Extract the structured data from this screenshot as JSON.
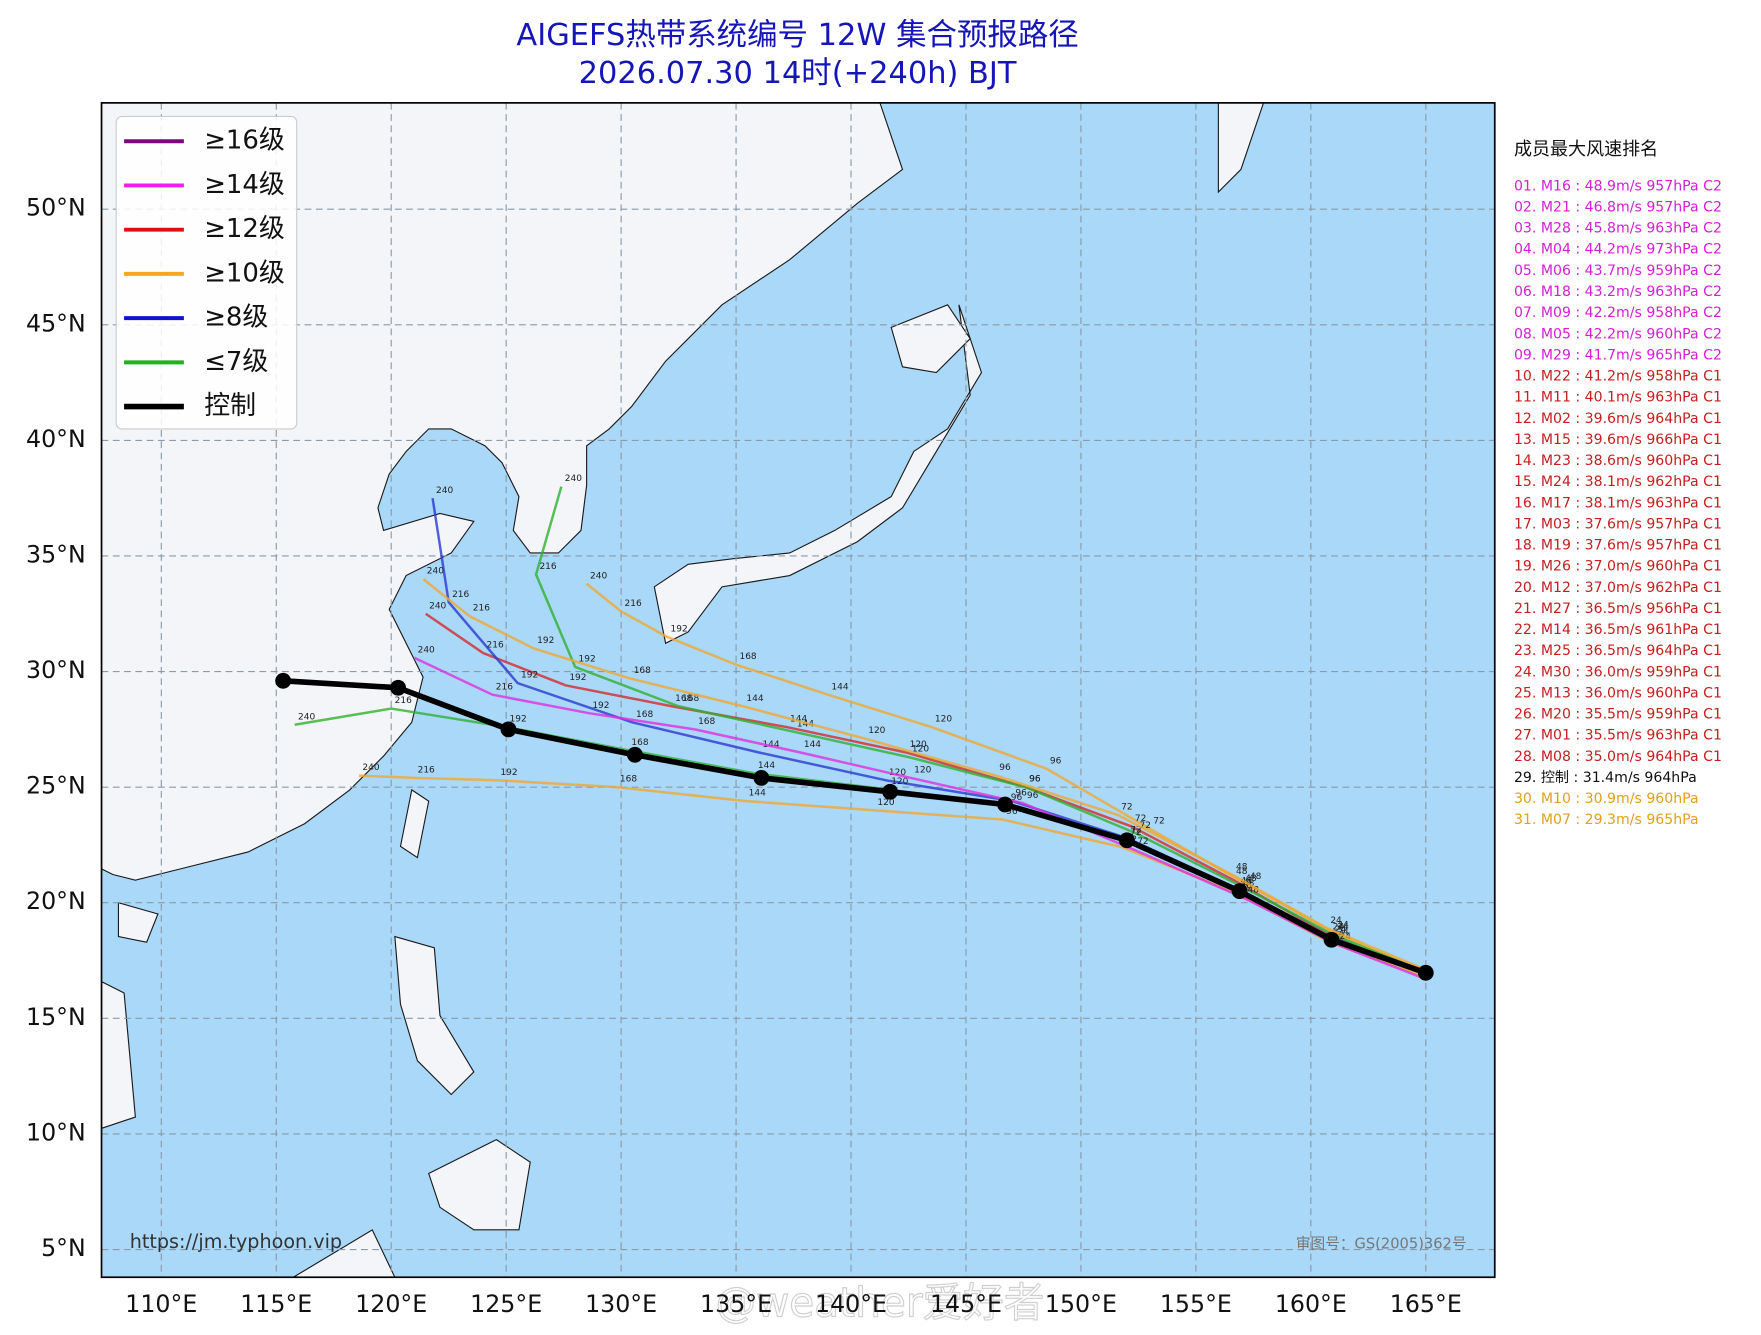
{
  "chart_data": {
    "type": "track-map",
    "title": [
      "AIGEFS热带系统编号 12W 集合预报路径",
      "2026.07.30 14时(+240h) BJT"
    ],
    "xlim": [
      107.4,
      168
    ],
    "ylim": [
      3.8,
      54.6
    ],
    "xticks": [
      {
        "value": 110,
        "label": "110°E"
      },
      {
        "value": 115,
        "label": "115°E"
      },
      {
        "value": 120,
        "label": "120°E"
      },
      {
        "value": 125,
        "label": "125°E"
      },
      {
        "value": 130,
        "label": "130°E"
      },
      {
        "value": 135,
        "label": "135°E"
      },
      {
        "value": 140,
        "label": "140°E"
      },
      {
        "value": 145,
        "label": "145°E"
      },
      {
        "value": 150,
        "label": "150°E"
      },
      {
        "value": 155,
        "label": "155°E"
      },
      {
        "value": 160,
        "label": "160°E"
      },
      {
        "value": 165,
        "label": "165°E"
      }
    ],
    "yticks": [
      {
        "value": 5,
        "label": "5°N"
      },
      {
        "value": 10,
        "label": "10°N"
      },
      {
        "value": 15,
        "label": "15°N"
      },
      {
        "value": 20,
        "label": "20°N"
      },
      {
        "value": 25,
        "label": "25°N"
      },
      {
        "value": 30,
        "label": "30°N"
      },
      {
        "value": 35,
        "label": "35°N"
      },
      {
        "value": 40,
        "label": "40°N"
      },
      {
        "value": 45,
        "label": "45°N"
      },
      {
        "value": 50,
        "label": "50°N"
      }
    ],
    "grid": true,
    "legend_position": "upper left",
    "legend": [
      {
        "label": "≥16级",
        "color": "#7a0a78"
      },
      {
        "label": "≥14级",
        "color": "#f01cf0"
      },
      {
        "label": "≥12级",
        "color": "#e01010"
      },
      {
        "label": "≥10级",
        "color": "#f5a623"
      },
      {
        "label": "≥8级",
        "color": "#1010d0"
      },
      {
        "label": "≤7级",
        "color": "#20b020"
      },
      {
        "label": "控制",
        "color": "#000000"
      }
    ],
    "hours": [
      24,
      48,
      72,
      96,
      120,
      144,
      168,
      192,
      216,
      240
    ],
    "series": [
      {
        "color": "#f0a830",
        "x": [
          165,
          161,
          157.2,
          153,
          148.5,
          143.5,
          139,
          135,
          132,
          130,
          128.5
        ],
        "values": [
          17,
          18.7,
          20.8,
          23.2,
          25.8,
          27.6,
          29,
          30.3,
          31.5,
          32.6,
          33.8
        ]
      },
      {
        "color": "#d42a2a",
        "x": [
          165,
          160.8,
          156.6,
          152.2,
          147.6,
          142.4,
          137.2,
          132.2,
          127.6,
          124,
          121.5
        ],
        "values": [
          16.9,
          18.6,
          21,
          23.3,
          25,
          26.5,
          27.6,
          28.5,
          29.4,
          30.8,
          32.5
        ]
      },
      {
        "color": "#2a3ad0",
        "x": [
          165,
          160.9,
          156.8,
          152,
          147,
          141.5,
          136,
          130.5,
          125.5,
          122.5,
          121.8
        ],
        "values": [
          17,
          18.5,
          20.6,
          22.8,
          24.4,
          25.3,
          26.5,
          27.8,
          29.5,
          33,
          37.5
        ]
      },
      {
        "color": "#30b030",
        "x": [
          165,
          161,
          157,
          152.4,
          147.6,
          142.5,
          137.5,
          132.5,
          128,
          126.3,
          127.4
        ],
        "values": [
          17,
          18.6,
          20.7,
          23,
          25,
          26.3,
          27.4,
          28.5,
          30.2,
          34.2,
          38
        ]
      },
      {
        "color": "#f0a830",
        "x": [
          165,
          160.8,
          156.8,
          151.8,
          146.6,
          141,
          135.4,
          129.8,
          124.6,
          121,
          118.6
        ],
        "values": [
          16.8,
          18.3,
          20.4,
          22.4,
          23.6,
          24,
          24.4,
          25,
          25.3,
          25.4,
          25.5
        ]
      },
      {
        "color": "#30b030",
        "x": [
          165,
          161,
          156.9,
          152,
          146.8,
          141.6,
          135.8,
          130.3,
          125,
          120,
          115.8
        ],
        "values": [
          17,
          18.4,
          20.5,
          22.7,
          24.2,
          24.9,
          25.6,
          26.6,
          27.6,
          28.4,
          27.7
        ]
      },
      {
        "color": "#e030e0",
        "x": [
          165,
          161.1,
          157.1,
          152.3,
          147.5,
          142.6,
          137.8,
          133.2,
          128.6,
          124.4,
          121
        ],
        "values": [
          16.7,
          18.2,
          20.2,
          22.3,
          24.3,
          25.4,
          26.5,
          27.5,
          28.2,
          29,
          30.6
        ]
      },
      {
        "color": "#f0a830",
        "x": [
          165,
          160.7,
          156.6,
          151.6,
          146.3,
          140.6,
          135.3,
          130.4,
          126.2,
          123.4,
          121.4
        ],
        "values": [
          17.1,
          18.9,
          21.2,
          23.8,
          25.5,
          27.1,
          28.5,
          29.7,
          31,
          32.4,
          34
        ]
      }
    ],
    "control": {
      "color": "#000000",
      "x": [
        165,
        160.9,
        156.9,
        152,
        146.7,
        141.7,
        136.1,
        130.6,
        125.1,
        120.3,
        115.3
      ],
      "values": [
        16.97,
        18.4,
        20.5,
        22.7,
        24.25,
        24.8,
        25.4,
        26.4,
        27.5,
        29.3,
        29.6
      ]
    },
    "ranking": {
      "title": "成员最大风速排名",
      "entries": [
        {
          "text": "01. M16 : 48.9m/s 957hPa C2",
          "color": "#d21fd2"
        },
        {
          "text": "02. M21 : 46.8m/s 957hPa C2",
          "color": "#d21fd2"
        },
        {
          "text": "03. M28 : 45.8m/s 963hPa C2",
          "color": "#d21fd2"
        },
        {
          "text": "04. M04 : 44.2m/s 973hPa C2",
          "color": "#d21fd2"
        },
        {
          "text": "05. M06 : 43.7m/s 959hPa C2",
          "color": "#d21fd2"
        },
        {
          "text": "06. M18 : 43.2m/s 963hPa C2",
          "color": "#d21fd2"
        },
        {
          "text": "07. M09 : 42.2m/s 958hPa C2",
          "color": "#d21fd2"
        },
        {
          "text": "08. M05 : 42.2m/s 960hPa C2",
          "color": "#d21fd2"
        },
        {
          "text": "09. M29 : 41.7m/s 965hPa C2",
          "color": "#d21fd2"
        },
        {
          "text": "10. M22 : 41.2m/s 958hPa C1",
          "color": "#c41e1e"
        },
        {
          "text": "11. M11 : 40.1m/s 963hPa C1",
          "color": "#c41e1e"
        },
        {
          "text": "12. M02 : 39.6m/s 964hPa C1",
          "color": "#c41e1e"
        },
        {
          "text": "13. M15 : 39.6m/s 966hPa C1",
          "color": "#c41e1e"
        },
        {
          "text": "14. M23 : 38.6m/s 960hPa C1",
          "color": "#c41e1e"
        },
        {
          "text": "15. M24 : 38.1m/s 962hPa C1",
          "color": "#c41e1e"
        },
        {
          "text": "16. M17 : 38.1m/s 963hPa C1",
          "color": "#c41e1e"
        },
        {
          "text": "17. M03 : 37.6m/s 957hPa C1",
          "color": "#c41e1e"
        },
        {
          "text": "18. M19 : 37.6m/s 957hPa C1",
          "color": "#c41e1e"
        },
        {
          "text": "19. M26 : 37.0m/s 960hPa C1",
          "color": "#c41e1e"
        },
        {
          "text": "20. M12 : 37.0m/s 962hPa C1",
          "color": "#c41e1e"
        },
        {
          "text": "21. M27 : 36.5m/s 956hPa C1",
          "color": "#c41e1e"
        },
        {
          "text": "22. M14 : 36.5m/s 961hPa C1",
          "color": "#c41e1e"
        },
        {
          "text": "23. M25 : 36.5m/s 964hPa C1",
          "color": "#c41e1e"
        },
        {
          "text": "24. M30 : 36.0m/s 959hPa C1",
          "color": "#c41e1e"
        },
        {
          "text": "25. M13 : 36.0m/s 960hPa C1",
          "color": "#c41e1e"
        },
        {
          "text": "26. M20 : 35.5m/s 959hPa C1",
          "color": "#c41e1e"
        },
        {
          "text": "27. M01 : 35.5m/s 963hPa C1",
          "color": "#c41e1e"
        },
        {
          "text": "28. M08 : 35.0m/s 964hPa C1",
          "color": "#c41e1e"
        },
        {
          "text": "29. 控制 : 31.4m/s 964hPa",
          "color": "#111111"
        },
        {
          "text": "30. M10 : 30.9m/s 960hPa",
          "color": "#e0a020"
        },
        {
          "text": "31. M07 : 29.3m/s 965hPa",
          "color": "#e0a020"
        }
      ]
    },
    "source": "https://jm.typhoon.vip",
    "map_approval": "审图号：GS(2005)362号",
    "watermark": "@weather爱好者"
  }
}
